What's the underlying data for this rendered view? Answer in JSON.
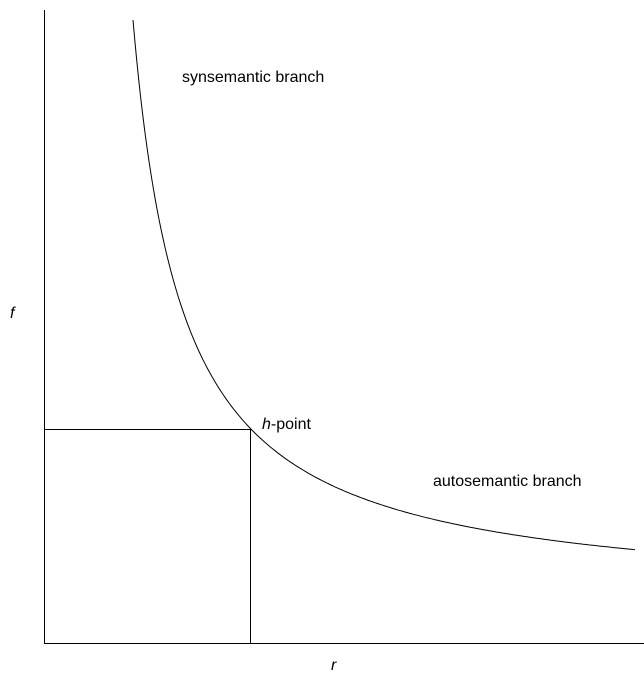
{
  "axes": {
    "y_label": "f",
    "x_label": "r"
  },
  "annotations": {
    "upper_branch": "synsemantic branch",
    "lower_branch": "autosemantic branch",
    "point": "h-point"
  }
}
